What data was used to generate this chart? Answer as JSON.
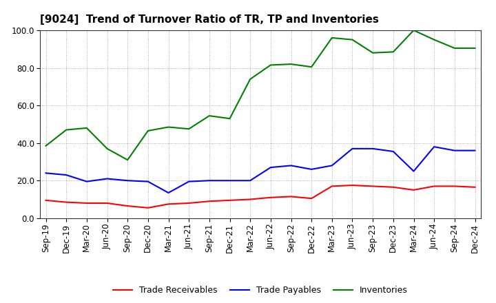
{
  "title": "[9024]  Trend of Turnover Ratio of TR, TP and Inventories",
  "x_labels": [
    "Sep-19",
    "Dec-19",
    "Mar-20",
    "Jun-20",
    "Sep-20",
    "Dec-20",
    "Mar-21",
    "Jun-21",
    "Sep-21",
    "Dec-21",
    "Mar-22",
    "Jun-22",
    "Sep-22",
    "Dec-22",
    "Mar-23",
    "Jun-23",
    "Sep-23",
    "Dec-23",
    "Mar-24",
    "Jun-24",
    "Sep-24",
    "Dec-24"
  ],
  "trade_receivables": [
    9.5,
    8.5,
    8.0,
    8.0,
    6.5,
    5.5,
    7.5,
    8.0,
    9.0,
    9.5,
    10.0,
    11.0,
    11.5,
    10.5,
    17.0,
    17.5,
    17.0,
    16.5,
    15.0,
    17.0,
    17.0,
    16.5
  ],
  "trade_payables": [
    24.0,
    23.0,
    19.5,
    21.0,
    20.0,
    19.5,
    13.5,
    19.5,
    20.0,
    20.0,
    20.0,
    27.0,
    28.0,
    26.0,
    28.0,
    37.0,
    37.0,
    35.5,
    25.0,
    38.0,
    36.0,
    36.0
  ],
  "inventories": [
    38.5,
    47.0,
    48.0,
    37.0,
    31.0,
    46.5,
    48.5,
    47.5,
    54.5,
    53.0,
    74.0,
    81.5,
    82.0,
    80.5,
    96.0,
    95.0,
    88.0,
    88.5,
    100.0,
    95.0,
    90.5,
    90.5
  ],
  "ylim": [
    0.0,
    100.0
  ],
  "yticks": [
    0.0,
    20.0,
    40.0,
    60.0,
    80.0,
    100.0
  ],
  "ytick_labels": [
    "0.0",
    "20.0",
    "40.0",
    "60.0",
    "80.0",
    "100.0"
  ],
  "color_tr": "#FF0000",
  "color_tp": "#0000FF",
  "color_inv": "#008000",
  "legend_labels": [
    "Trade Receivables",
    "Trade Payables",
    "Inventories"
  ],
  "background_color": "#FFFFFF",
  "grid_color": "#999999",
  "title_fontsize": 11,
  "tick_fontsize": 8.5,
  "legend_fontsize": 9
}
